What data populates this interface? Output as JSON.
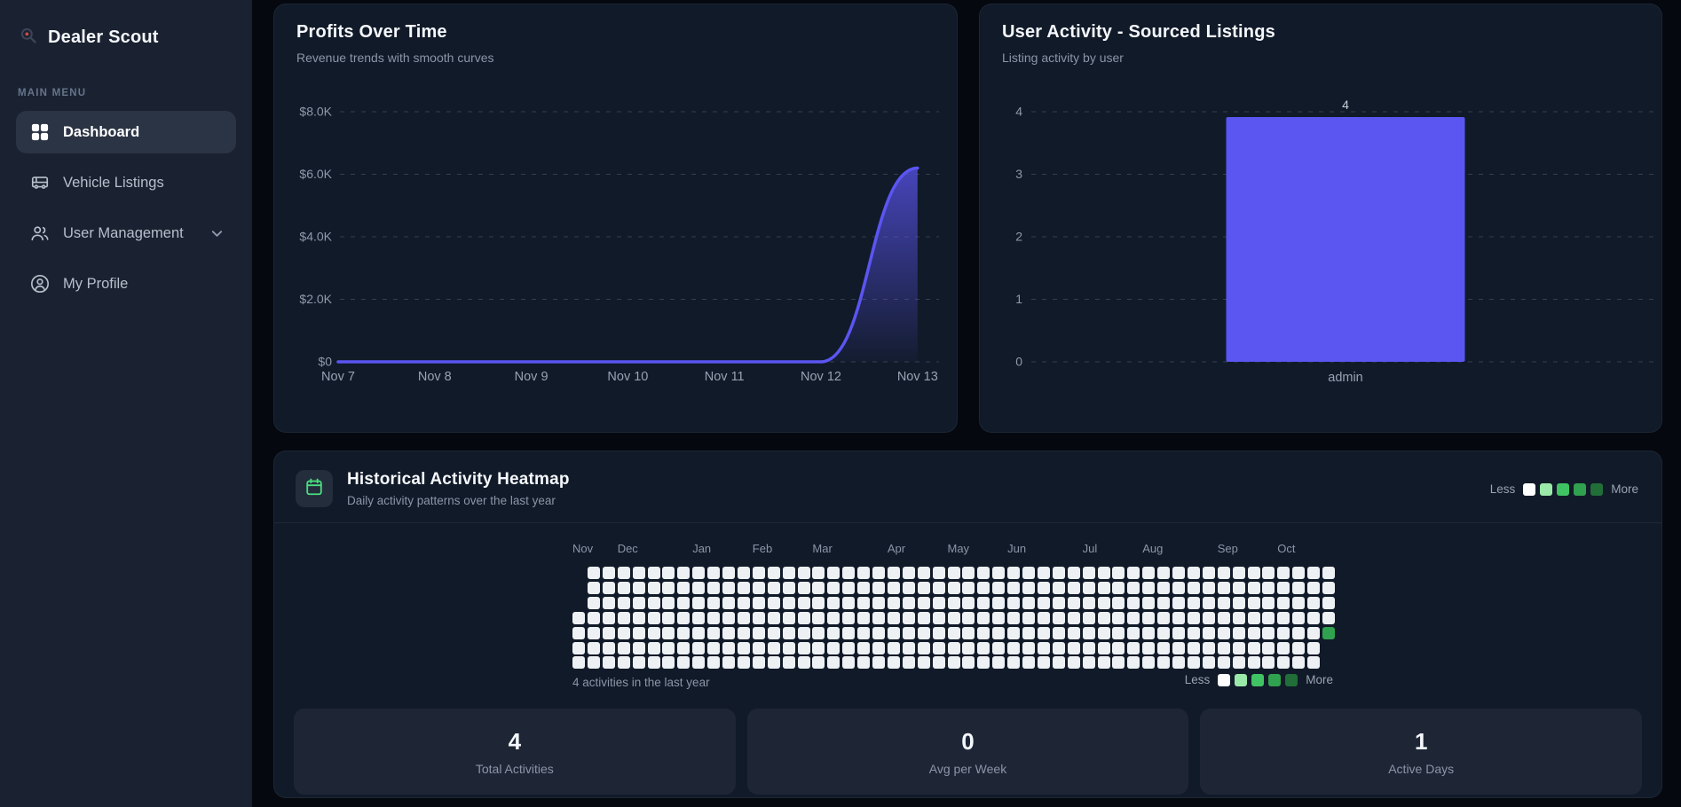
{
  "sidebar": {
    "brand": "Dealer Scout",
    "section_label": "MAIN MENU",
    "items": [
      {
        "label": "Dashboard",
        "icon": "grid-icon",
        "active": true
      },
      {
        "label": "Vehicle Listings",
        "icon": "vehicle-icon",
        "active": false
      },
      {
        "label": "User Management",
        "icon": "users-icon",
        "active": false,
        "has_chevron": true
      },
      {
        "label": "My Profile",
        "icon": "profile-icon",
        "active": false
      }
    ]
  },
  "cards": {
    "profits": {
      "title": "Profits Over Time",
      "subtitle": "Revenue trends with smooth curves"
    },
    "activity": {
      "title": "User Activity - Sourced Listings",
      "subtitle": "Listing activity by user"
    },
    "heatmap": {
      "title": "Historical Activity Heatmap",
      "subtitle": "Daily activity patterns over the last year",
      "icon": "calendar-icon",
      "summary": "4 activities in the last year",
      "legend": {
        "less_label": "Less",
        "more_label": "More",
        "colors": [
          "#ffffff",
          "#9be9a8",
          "#40c463",
          "#30a14e",
          "#216e39"
        ]
      },
      "stats": [
        {
          "value": "4",
          "label": "Total Activities"
        },
        {
          "value": "0",
          "label": "Avg per Week"
        },
        {
          "value": "1",
          "label": "Active Days"
        }
      ]
    }
  },
  "chart_data": [
    {
      "type": "area",
      "title": "Profits Over Time",
      "subtitle": "Revenue trends with smooth curves",
      "x": [
        "Nov 7",
        "Nov 8",
        "Nov 9",
        "Nov 10",
        "Nov 11",
        "Nov 12",
        "Nov 13"
      ],
      "values": [
        0,
        0,
        0,
        0,
        0,
        0,
        6200
      ],
      "ylim": [
        0,
        8000
      ],
      "yticks": [
        {
          "v": 0,
          "label": "$0"
        },
        {
          "v": 2000,
          "label": "$2.0K"
        },
        {
          "v": 4000,
          "label": "$4.0K"
        },
        {
          "v": 6000,
          "label": "$6.0K"
        },
        {
          "v": 8000,
          "label": "$8.0K"
        }
      ],
      "grid": "dashed-horizontal",
      "legend": "none",
      "line_color": "#5b55f2"
    },
    {
      "type": "bar",
      "title": "User Activity - Sourced Listings",
      "subtitle": "Listing activity by user",
      "categories": [
        "admin"
      ],
      "values": [
        4
      ],
      "value_labels": [
        "4"
      ],
      "ylim": [
        0,
        4
      ],
      "yticks": [
        {
          "v": 0,
          "label": "0"
        },
        {
          "v": 1,
          "label": "1"
        },
        {
          "v": 2,
          "label": "2"
        },
        {
          "v": 3,
          "label": "3"
        },
        {
          "v": 4,
          "label": "4"
        }
      ],
      "grid": "dashed-horizontal",
      "bar_color": "#5b55f2"
    },
    {
      "type": "heatmap",
      "title": "Historical Activity Heatmap",
      "columns": 51,
      "rows": 7,
      "first_col_rows": [
        3,
        4,
        5,
        6
      ],
      "last_col_rows": [
        0,
        1,
        2,
        3,
        4
      ],
      "empty_color": "#eef1f4",
      "active_cells": [
        {
          "col": 50,
          "row": 4,
          "color": "#30a14e"
        }
      ],
      "months": [
        {
          "label": "Nov",
          "col": 0
        },
        {
          "label": "Dec",
          "col": 3
        },
        {
          "label": "Jan",
          "col": 8
        },
        {
          "label": "Feb",
          "col": 12
        },
        {
          "label": "Mar",
          "col": 16
        },
        {
          "label": "Apr",
          "col": 21
        },
        {
          "label": "May",
          "col": 25
        },
        {
          "label": "Jun",
          "col": 29
        },
        {
          "label": "Jul",
          "col": 34
        },
        {
          "label": "Aug",
          "col": 38
        },
        {
          "label": "Sep",
          "col": 43
        },
        {
          "label": "Oct",
          "col": 47
        }
      ],
      "total_label": "4 activities in the last year"
    }
  ]
}
